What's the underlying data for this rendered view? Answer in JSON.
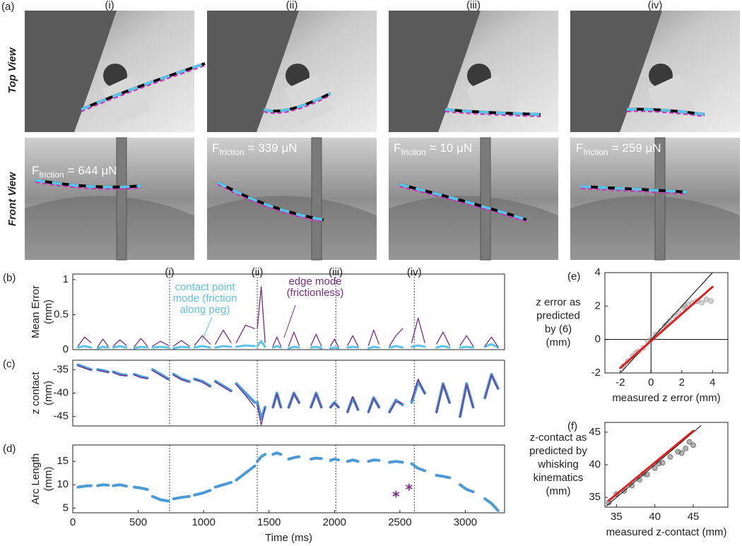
{
  "panel_a": {
    "label": "(a)",
    "columns": [
      "(i)",
      "(ii)",
      "(iii)",
      "(iv)"
    ],
    "rows": [
      "Top View",
      "Front View"
    ],
    "friction": [
      {
        "symbol": "F",
        "subscript": "friction",
        "value": "= 644 μN"
      },
      {
        "symbol": "F",
        "subscript": "friction",
        "value": "= 339 μN"
      },
      {
        "symbol": "F",
        "subscript": "friction",
        "value": "= 10 μN"
      },
      {
        "symbol": "F",
        "subscript": "friction",
        "value": "= 259 μN"
      }
    ]
  },
  "chart_data": [
    {
      "type": "line",
      "panel": "(b)",
      "ylabel": [
        "Mean Error",
        "(mm)"
      ],
      "xlim": [
        0,
        3300
      ],
      "ylim": [
        0,
        1.08
      ],
      "yticks": [
        0,
        0.5,
        1
      ],
      "vlines": [
        {
          "value": 740,
          "label": "(i)"
        },
        {
          "value": 1410,
          "label": "(ii)"
        },
        {
          "value": 2010,
          "label": "(iii)"
        },
        {
          "value": 2610,
          "label": "(iv)"
        }
      ],
      "x": [
        40,
        90,
        140,
        160,
        190,
        230,
        270,
        290,
        310,
        360,
        410,
        440,
        470,
        520,
        570,
        590,
        610,
        670,
        730,
        750,
        770,
        830,
        890,
        910,
        930,
        990,
        1050,
        1070,
        1090,
        1150,
        1210,
        1230,
        1250,
        1320,
        1390,
        1400,
        1410,
        1440,
        1470,
        1500,
        1530,
        1560,
        1590,
        1610,
        1650,
        1690,
        1730,
        1770,
        1820,
        1860,
        1900,
        1940,
        1970,
        2000,
        2030,
        2060,
        2100,
        2140,
        2180,
        2220,
        2260,
        2300,
        2340,
        2380,
        2420,
        2470,
        2520,
        2560,
        2590,
        2640,
        2690,
        2730,
        2780,
        2830,
        2880,
        2920,
        2960,
        3010,
        3060,
        3100,
        3150,
        3200,
        3250
      ],
      "series": [
        {
          "name": "contact point mode (friction along peg)",
          "color": "#5bc3e8",
          "width": 3,
          "values": [
            0.03,
            0.05,
            0.03,
            null,
            0.02,
            0.04,
            0.03,
            null,
            0.03,
            0.05,
            0.03,
            null,
            0.02,
            0.04,
            0.03,
            null,
            0.03,
            0.04,
            0.03,
            null,
            0.02,
            0.04,
            0.03,
            null,
            0.03,
            0.05,
            0.03,
            null,
            0.03,
            0.05,
            0.04,
            null,
            0.04,
            0.06,
            0.05,
            null,
            0.05,
            0.12,
            0.04,
            null,
            0.03,
            0.05,
            0.03,
            null,
            0.02,
            0.04,
            0.03,
            null,
            0.03,
            0.04,
            0.02,
            null,
            0.02,
            0.03,
            0.02,
            null,
            0.03,
            0.04,
            0.03,
            null,
            0.02,
            0.04,
            0.03,
            null,
            0.03,
            0.05,
            0.03,
            null,
            0.04,
            0.06,
            0.04,
            null,
            0.03,
            0.05,
            0.03,
            null,
            0.03,
            0.04,
            0.03,
            null,
            0.04,
            0.08,
            0.03
          ]
        },
        {
          "name": "edge mode (frictionless)",
          "color": "#7b2a8a",
          "width": 1.3,
          "values": [
            0.05,
            0.18,
            0.1,
            null,
            0.04,
            0.15,
            0.05,
            null,
            0.05,
            0.14,
            0.06,
            null,
            0.04,
            0.16,
            0.05,
            null,
            0.05,
            0.12,
            0.06,
            null,
            0.05,
            0.13,
            0.05,
            null,
            0.06,
            0.2,
            0.08,
            null,
            0.08,
            0.28,
            0.1,
            null,
            0.1,
            0.35,
            0.3,
            null,
            0.3,
            0.9,
            0.1,
            null,
            0.05,
            0.18,
            0.05,
            null,
            0.05,
            0.25,
            0.06,
            null,
            0.06,
            0.22,
            0.05,
            null,
            0.05,
            0.15,
            0.04,
            null,
            0.06,
            0.2,
            0.05,
            null,
            0.06,
            0.28,
            0.08,
            null,
            0.05,
            0.2,
            0.3,
            null,
            0.1,
            0.45,
            0.1,
            null,
            0.08,
            0.25,
            0.06,
            null,
            0.06,
            0.2,
            0.05,
            null,
            0.05,
            0.18,
            0.04
          ]
        }
      ]
    },
    {
      "type": "line",
      "panel": "(c)",
      "ylabel": [
        "z contact",
        "(mm)"
      ],
      "xlim": [
        0,
        3300
      ],
      "ylim": [
        -47,
        -33
      ],
      "yticks": [
        -45,
        -40,
        -35
      ],
      "x": [
        40,
        90,
        140,
        160,
        190,
        230,
        270,
        290,
        310,
        360,
        410,
        440,
        470,
        520,
        570,
        590,
        610,
        670,
        730,
        750,
        770,
        830,
        890,
        910,
        930,
        990,
        1050,
        1070,
        1090,
        1150,
        1210,
        1230,
        1250,
        1320,
        1390,
        1400,
        1410,
        1440,
        1470,
        1500,
        1530,
        1560,
        1590,
        1610,
        1650,
        1690,
        1730,
        1770,
        1820,
        1860,
        1900,
        1940,
        1970,
        2000,
        2030,
        2060,
        2100,
        2140,
        2180,
        2220,
        2260,
        2300,
        2340,
        2380,
        2420,
        2470,
        2520,
        2560,
        2590,
        2640,
        2690,
        2730,
        2780,
        2830,
        2880,
        2920,
        2960,
        3010,
        3060,
        3100,
        3150,
        3200,
        3250
      ],
      "series": [
        {
          "color": "#4a9ad8",
          "width": 4,
          "values": [
            -34,
            -34.5,
            -35,
            null,
            -35,
            -35.2,
            -35.5,
            null,
            -35.5,
            -36,
            -36.2,
            null,
            -36,
            -36.5,
            -36.8,
            null,
            -35,
            -36,
            -37,
            null,
            -36,
            -37,
            -37.5,
            null,
            -37,
            -37.5,
            -38.5,
            null,
            -37.5,
            -38.5,
            -39.5,
            null,
            -38,
            -40,
            -42,
            null,
            -42,
            -45.5,
            -43,
            null,
            -43,
            -40,
            -43,
            null,
            -43,
            -40,
            -42,
            null,
            -43,
            -40,
            -43,
            null,
            -43,
            -42,
            -43,
            null,
            -44,
            -41,
            -43.5,
            null,
            -44,
            -41,
            -43,
            null,
            -44,
            -41.5,
            -42.5,
            null,
            -42,
            -37.5,
            -40,
            null,
            -44,
            -38,
            -42,
            null,
            -45,
            -38,
            -43,
            null,
            -41,
            -36,
            -39
          ]
        },
        {
          "color": "#7b2a8a",
          "width": 1.3,
          "values": [
            -34.2,
            -34.7,
            -35.1,
            null,
            -35.1,
            -35.4,
            -35.6,
            null,
            -35.6,
            -36.2,
            -36.3,
            null,
            -36.1,
            -36.7,
            -36.9,
            null,
            -35.2,
            -36.2,
            -37.1,
            null,
            -36.2,
            -37.1,
            -37.7,
            null,
            -37.1,
            -37.7,
            -38.7,
            null,
            -37.6,
            -38.7,
            -39.7,
            null,
            -38.2,
            -40.5,
            -43,
            null,
            -42.5,
            -46.8,
            -43.2,
            null,
            -43.1,
            -40.2,
            -43.1,
            null,
            -43.2,
            -40.1,
            -42.2,
            null,
            -43.1,
            -40.2,
            -43.1,
            null,
            -43.1,
            -42.1,
            -43.1,
            null,
            -44.1,
            -40.8,
            -43.6,
            null,
            -44.1,
            -41.1,
            -43.1,
            null,
            -44.2,
            -41.8,
            -42.2,
            null,
            -41.5,
            -37,
            -40.2,
            null,
            -44.2,
            -38.2,
            -42.1,
            null,
            -45.1,
            -38.2,
            -43.1,
            null,
            -41.2,
            -36.2,
            -39.1
          ]
        }
      ]
    },
    {
      "type": "line",
      "panel": "(d)",
      "ylabel": [
        "Arc Length",
        "(mm)"
      ],
      "xlabel": "Time (ms)",
      "xlim": [
        0,
        3300
      ],
      "ylim": [
        4,
        18.5
      ],
      "yticks": [
        5,
        10,
        15
      ],
      "xticks": [
        0,
        500,
        1000,
        1500,
        2000,
        2500,
        3000
      ],
      "x": [
        40,
        90,
        140,
        160,
        190,
        230,
        270,
        290,
        310,
        360,
        410,
        440,
        470,
        520,
        570,
        590,
        610,
        670,
        730,
        750,
        770,
        830,
        890,
        910,
        930,
        990,
        1050,
        1070,
        1090,
        1150,
        1210,
        1230,
        1250,
        1320,
        1390,
        1400,
        1410,
        1440,
        1470,
        1500,
        1530,
        1560,
        1590,
        1610,
        1650,
        1690,
        1730,
        1770,
        1820,
        1860,
        1900,
        1940,
        1970,
        2000,
        2030,
        2060,
        2100,
        2140,
        2180,
        2220,
        2260,
        2300,
        2340,
        2380,
        2420,
        2470,
        2520,
        2560,
        2590,
        2640,
        2690,
        2730,
        2780,
        2830,
        2880,
        2920,
        2960,
        3010,
        3060,
        3100,
        3150,
        3200,
        3250
      ],
      "series": [
        {
          "color": "#4a9ad8",
          "width": 4,
          "values": [
            9.5,
            9.7,
            9.8,
            null,
            9.8,
            10,
            9.9,
            null,
            9.8,
            10,
            9.7,
            null,
            9.5,
            9.3,
            9,
            null,
            7.5,
            6.8,
            6.5,
            null,
            7,
            7.3,
            7.5,
            null,
            7.8,
            8.2,
            8.8,
            null,
            9.5,
            10,
            10.5,
            null,
            11,
            12.5,
            14,
            null,
            15,
            16,
            16.5,
            null,
            16.5,
            16.8,
            16.5,
            null,
            15.5,
            15.8,
            16,
            null,
            15.5,
            15.7,
            15.6,
            null,
            15.2,
            15.5,
            15.3,
            null,
            15,
            15.3,
            15,
            null,
            15,
            15.3,
            15.2,
            null,
            14.8,
            15,
            14.8,
            null,
            14.5,
            13.5,
            13,
            null,
            12,
            11.8,
            11.5,
            null,
            10,
            9,
            8.5,
            null,
            7,
            6,
            4.5
          ]
        },
        {
          "color": "#7b2a8a",
          "marker": "*",
          "x": [
            2470,
            2570
          ],
          "values": [
            8,
            9.5
          ]
        }
      ]
    },
    {
      "type": "scatter",
      "panel": "(e)",
      "ylabel": [
        "z error as",
        "predicted",
        "by (6)",
        "(mm)"
      ],
      "xlabel": "measured z error (mm)",
      "xlim": [
        -3,
        5
      ],
      "ylim": [
        -2,
        4
      ],
      "xticks": [
        -2,
        0,
        2,
        4
      ],
      "yticks": [
        -2,
        0,
        2,
        4
      ],
      "hlines": [
        0
      ],
      "vlines": [
        0
      ],
      "series": [
        {
          "color": "#9a9a9a",
          "x": [
            -1.8,
            -1.5,
            -1.2,
            -1,
            -0.8,
            -0.5,
            -0.2,
            0,
            0.3,
            0.6,
            0.9,
            1,
            1.2,
            1.5,
            1.8,
            2.1,
            2.2,
            2.4,
            2.7,
            3,
            3.3,
            3.6,
            3.9
          ],
          "values": [
            -1.6,
            -1.3,
            -1,
            -0.8,
            -0.7,
            -0.5,
            -0.1,
            0,
            0.3,
            0.5,
            0.8,
            0.9,
            1.1,
            1.4,
            1.6,
            1.9,
            2,
            2.1,
            2.2,
            2.3,
            2.2,
            2.4,
            2.3
          ]
        },
        {
          "color": "#000000",
          "line": true,
          "width": 1,
          "x": [
            -2,
            4
          ],
          "values": [
            -2,
            4
          ]
        },
        {
          "color": "#e02020",
          "line": true,
          "width": 3,
          "x": [
            -2,
            4
          ],
          "values": [
            -1.7,
            3.15
          ]
        }
      ]
    },
    {
      "type": "scatter",
      "panel": "(f)",
      "ylabel": [
        "z-contact as",
        "predicted by",
        "whisking",
        "kinematics",
        "(mm)"
      ],
      "xlabel": "measured z-contact (mm)",
      "xlim": [
        33.5,
        49.5
      ],
      "ylim": [
        33.5,
        46.5
      ],
      "xticks": [
        35,
        40,
        45
      ],
      "yticks": [
        35,
        40,
        45
      ],
      "series": [
        {
          "color": "#555555",
          "x": [
            34,
            35,
            36,
            37,
            38,
            38.5,
            39,
            40,
            40.5,
            41,
            42,
            43,
            43.5,
            44,
            44.5,
            45
          ],
          "values": [
            34.2,
            35.5,
            36,
            36.8,
            37.7,
            38.6,
            38.5,
            39.5,
            40.2,
            40.3,
            41.2,
            42,
            41.8,
            42.5,
            43.5,
            43
          ]
        },
        {
          "color": "#000000",
          "line": true,
          "width": 1,
          "x": [
            33.7,
            46
          ],
          "values": [
            33.7,
            46
          ]
        },
        {
          "color": "#e02020",
          "line": true,
          "width": 3,
          "x": [
            34,
            45
          ],
          "values": [
            34.5,
            45.2
          ]
        }
      ]
    }
  ]
}
